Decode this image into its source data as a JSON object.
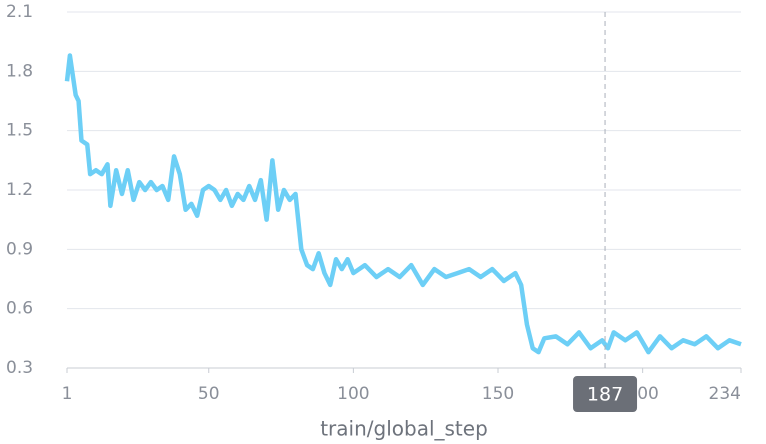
{
  "chart_data": {
    "type": "line",
    "x_label": "train/global_step",
    "x": [
      1,
      2,
      4,
      5,
      6,
      8,
      9,
      11,
      13,
      15,
      16,
      18,
      20,
      22,
      24,
      26,
      28,
      30,
      32,
      34,
      36,
      38,
      40,
      42,
      44,
      46,
      48,
      50,
      52,
      54,
      56,
      58,
      60,
      62,
      64,
      66,
      68,
      70,
      72,
      74,
      76,
      78,
      80,
      82,
      84,
      86,
      88,
      90,
      92,
      94,
      96,
      98,
      100,
      104,
      108,
      112,
      116,
      120,
      124,
      128,
      132,
      136,
      140,
      144,
      148,
      152,
      156,
      158,
      160,
      162,
      164,
      166,
      170,
      174,
      178,
      182,
      186,
      188,
      190,
      194,
      198,
      202,
      206,
      210,
      214,
      218,
      222,
      226,
      230,
      234
    ],
    "series": [
      {
        "color": "#6dcff6",
        "values": [
          1.75,
          1.88,
          1.68,
          1.65,
          1.45,
          1.43,
          1.28,
          1.3,
          1.28,
          1.33,
          1.12,
          1.3,
          1.18,
          1.3,
          1.15,
          1.24,
          1.2,
          1.24,
          1.2,
          1.22,
          1.15,
          1.37,
          1.28,
          1.1,
          1.13,
          1.07,
          1.2,
          1.22,
          1.2,
          1.15,
          1.2,
          1.12,
          1.18,
          1.15,
          1.22,
          1.15,
          1.25,
          1.05,
          1.35,
          1.1,
          1.2,
          1.15,
          1.18,
          0.9,
          0.82,
          0.8,
          0.88,
          0.78,
          0.72,
          0.85,
          0.8,
          0.85,
          0.78,
          0.82,
          0.76,
          0.8,
          0.76,
          0.82,
          0.72,
          0.8,
          0.76,
          0.78,
          0.8,
          0.76,
          0.8,
          0.74,
          0.78,
          0.72,
          0.52,
          0.4,
          0.38,
          0.45,
          0.46,
          0.42,
          0.48,
          0.4,
          0.44,
          0.4,
          0.48,
          0.44,
          0.48,
          0.38,
          0.46,
          0.4,
          0.44,
          0.42,
          0.46,
          0.4,
          0.44,
          0.42
        ]
      }
    ],
    "xlim": [
      1,
      234
    ],
    "ylim": [
      0.3,
      2.1
    ],
    "xticks": [
      1,
      50,
      100,
      150,
      200,
      234
    ],
    "yticks": [
      0.3,
      0.6,
      0.9,
      1.2,
      1.5,
      1.8,
      2.1
    ],
    "grid": true,
    "hover_x": 187
  }
}
